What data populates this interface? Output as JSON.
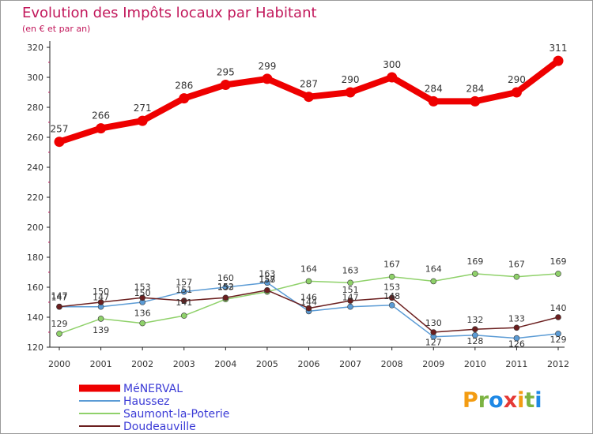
{
  "header": {
    "title": "Evolution des Impôts locaux par Habitant",
    "subtitle": "(en € et par an)"
  },
  "logo": {
    "letters": [
      "P",
      "r",
      "o",
      "x",
      "i",
      "t",
      "i"
    ],
    "colors": [
      "#f39c12",
      "#7cb342",
      "#1e88e5",
      "#e53935",
      "#f39c12",
      "#7cb342",
      "#1e88e5"
    ]
  },
  "chart_data": {
    "type": "line",
    "title": "Evolution des Impôts locaux par Habitant",
    "subtitle": "(en € et par an)",
    "x": [
      "2000",
      "2001",
      "2002",
      "2003",
      "2004",
      "2005",
      "2006",
      "2007",
      "2008",
      "2009",
      "2010",
      "2011",
      "2012"
    ],
    "ylim": [
      120,
      320
    ],
    "yticks": [
      120,
      140,
      160,
      180,
      200,
      220,
      240,
      260,
      280,
      300,
      320
    ],
    "grid": false,
    "legend": "bottom-left",
    "series": [
      {
        "name": "MéNERVAL",
        "color": "#ee0000",
        "width": 8,
        "marker": 6.5,
        "values": [
          257,
          266,
          271,
          286,
          295,
          299,
          287,
          290,
          300,
          284,
          284,
          290,
          311
        ],
        "labels": [
          "257",
          "266",
          "271",
          "286",
          "295",
          "299",
          "287",
          "290",
          "300",
          "284",
          "284",
          "290",
          "311"
        ]
      },
      {
        "name": "Haussez",
        "color": "#5b9bd5",
        "width": 1.5,
        "marker": 3.5,
        "values": [
          147,
          147,
          150,
          157,
          160,
          163,
          144,
          147,
          148,
          127,
          128,
          126,
          129
        ],
        "labels": [
          "147",
          "147",
          "150",
          "157",
          "160",
          "163",
          "144",
          "147",
          "148",
          "127",
          "128",
          "126",
          "129"
        ]
      },
      {
        "name": "Saumont-la-Poterie",
        "color": "#8fd16a",
        "width": 1.5,
        "marker": 3.5,
        "values": [
          129,
          139,
          136,
          141,
          152,
          157,
          164,
          163,
          167,
          164,
          169,
          167,
          169
        ],
        "labels": [
          "129",
          "139",
          "136",
          "141",
          "152",
          "157",
          "164",
          "163",
          "167",
          "164",
          "169",
          "167",
          "169"
        ]
      },
      {
        "name": "Doudeauville",
        "color": "#6b1f1f",
        "width": 1.5,
        "marker": 3.5,
        "values": [
          147,
          150,
          153,
          151,
          153,
          158,
          146,
          151,
          153,
          130,
          132,
          133,
          140
        ],
        "labels": [
          "147",
          "150",
          "153",
          "151",
          "153",
          "158",
          "146",
          "151",
          "153",
          "130",
          "132",
          "133",
          "140"
        ]
      }
    ]
  }
}
